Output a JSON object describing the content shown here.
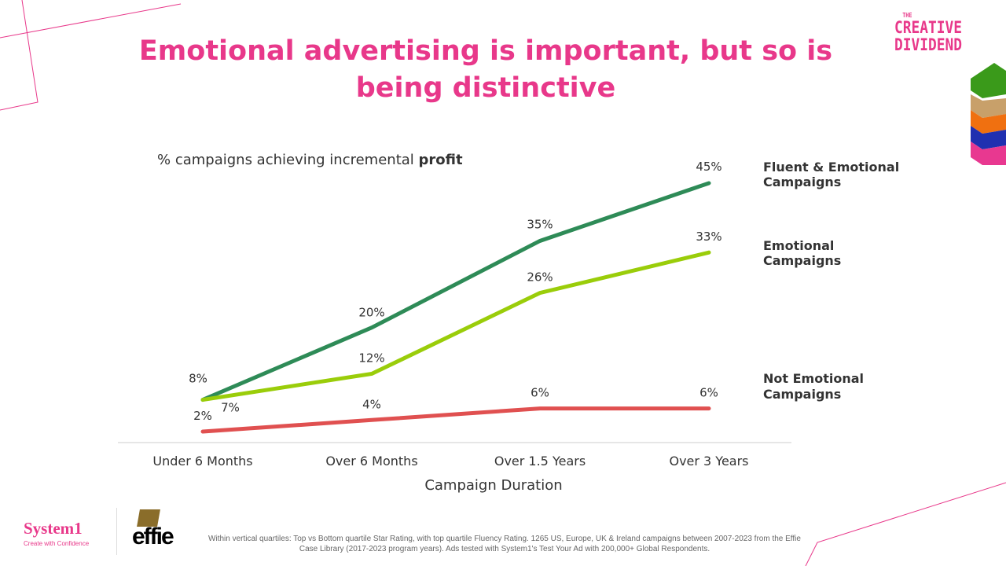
{
  "title": "Emotional advertising is important, but so is being distinctive",
  "brand": {
    "small": "THE",
    "line1": "CREATIVE",
    "line2": "DIVIDEND"
  },
  "logos": {
    "system1": "System1",
    "system1_tagline": "Create with Confidence",
    "effie": "effie"
  },
  "footer": "Within vertical quartiles: Top vs Bottom quartile Star Rating, with top quartile Fluency Rating. 1265 US, Europe, UK & Ireland campaigns between 2007-2023 from the Effie Case Library (2017-2023 program years). Ads tested with System1's Test Your Ad with 200,000+ Global Respondents.",
  "chart_data": {
    "type": "line",
    "subtitle_prefix": "% campaigns achieving incremental ",
    "subtitle_bold": "profit",
    "xlabel": "Campaign Duration",
    "categories": [
      "Under 6 Months",
      "Over 6 Months",
      "Over 1.5 Years",
      "Over 3 Years"
    ],
    "ylim": [
      0,
      50
    ],
    "grid": false,
    "legend": "right, inline labels",
    "series": [
      {
        "name": "Fluent & Emotional Campaigns",
        "name_lines": [
          "Fluent & Emotional",
          "Campaigns"
        ],
        "values": [
          8,
          20,
          35,
          45
        ],
        "labels": [
          "8%",
          "20%",
          "35%",
          "45%"
        ],
        "color": "#2e8b57"
      },
      {
        "name": "Emotional Campaigns",
        "name_lines": [
          "Emotional",
          "Campaigns"
        ],
        "values": [
          7,
          12,
          26,
          33
        ],
        "labels": [
          "7%",
          "12%",
          "26%",
          "33%"
        ],
        "color": "#9acd0a"
      },
      {
        "name": "Not Emotional Campaigns",
        "name_lines": [
          "Not Emotional",
          "Campaigns"
        ],
        "values": [
          2,
          4,
          6,
          6
        ],
        "labels": [
          "2%",
          "4%",
          "6%",
          "6%"
        ],
        "color": "#e05050"
      }
    ]
  }
}
